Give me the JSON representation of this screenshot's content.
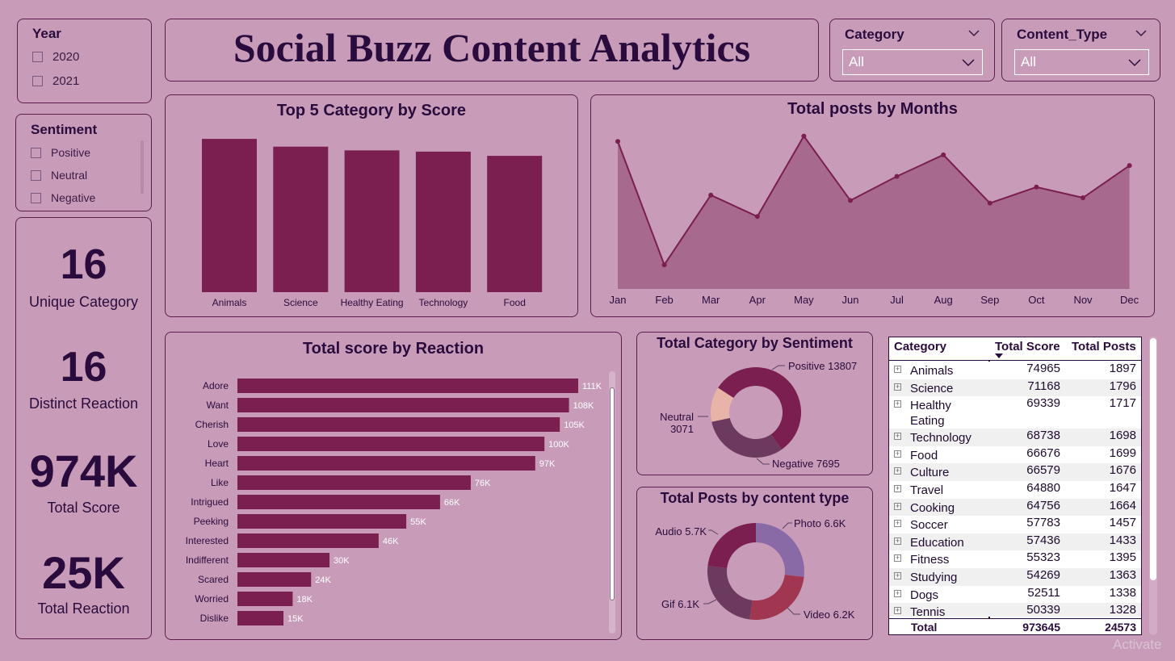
{
  "title": "Social Buzz Content Analytics",
  "year_slicer": {
    "title": "Year",
    "options": [
      "2020",
      "2021"
    ]
  },
  "sentiment_slicer": {
    "title": "Sentiment",
    "options": [
      "Positive",
      "Neutral",
      "Negative"
    ]
  },
  "category_slicer": {
    "title": "Category",
    "value": "All"
  },
  "content_type_slicer": {
    "title": "Content_Type",
    "value": "All"
  },
  "kpis": [
    {
      "value": "16",
      "label": "Unique Category"
    },
    {
      "value": "16",
      "label": "Distinct Reaction"
    },
    {
      "value": "974K",
      "label": "Total Score"
    },
    {
      "value": "25K",
      "label": "Total Reaction"
    }
  ],
  "colors": {
    "background": "#c89cb8",
    "bar": "#7a1f4f",
    "area_fill": "#a8698e",
    "line": "#7a1f4f",
    "title": "#2a0b3d"
  },
  "matrix": {
    "columns": [
      "Category",
      "Total Score",
      "Total Posts"
    ],
    "rows": [
      [
        "Animals",
        "74965",
        "1897"
      ],
      [
        "Science",
        "71168",
        "1796"
      ],
      [
        "Healthy Eating",
        "69339",
        "1717"
      ],
      [
        "Technology",
        "68738",
        "1698"
      ],
      [
        "Food",
        "66676",
        "1699"
      ],
      [
        "Culture",
        "66579",
        "1676"
      ],
      [
        "Travel",
        "64880",
        "1647"
      ],
      [
        "Cooking",
        "64756",
        "1664"
      ],
      [
        "Soccer",
        "57783",
        "1457"
      ],
      [
        "Education",
        "57436",
        "1433"
      ],
      [
        "Fitness",
        "55323",
        "1395"
      ],
      [
        "Studying",
        "54269",
        "1363"
      ],
      [
        "Dogs",
        "52511",
        "1338"
      ],
      [
        "Tennis",
        "50339",
        "1328"
      ]
    ],
    "total": [
      "Total",
      "973645",
      "24573"
    ]
  },
  "watermark": "Activate",
  "chart_data": [
    {
      "type": "bar",
      "title": "Top 5 Category by Score",
      "categories": [
        "Animals",
        "Science",
        "Healthy Eating",
        "Technology",
        "Food"
      ],
      "values": [
        74965,
        71168,
        69339,
        68738,
        66676
      ],
      "ylim": [
        0,
        75000
      ]
    },
    {
      "type": "area",
      "title": "Total posts by Months",
      "categories": [
        "Jan",
        "Feb",
        "Mar",
        "Apr",
        "May",
        "Jun",
        "Jul",
        "Aug",
        "Sep",
        "Oct",
        "Nov",
        "Dec"
      ],
      "values": [
        2140,
        1910,
        2040,
        2000,
        2150,
        2030,
        2075,
        2115,
        2025,
        2055,
        2035,
        2095
      ],
      "ylim": [
        1880,
        2160
      ]
    },
    {
      "type": "bar",
      "orientation": "horizontal",
      "title": "Total score by Reaction",
      "categories": [
        "Adore",
        "Want",
        "Cherish",
        "Love",
        "Heart",
        "Like",
        "Intrigued",
        "Peeking",
        "Interested",
        "Indifferent",
        "Scared",
        "Worried",
        "Dislike"
      ],
      "values": [
        111000,
        108000,
        105000,
        100000,
        97000,
        76000,
        66000,
        55000,
        46000,
        30000,
        24000,
        18000,
        15000
      ],
      "labels": [
        "111K",
        "108K",
        "105K",
        "100K",
        "97K",
        "76K",
        "66K",
        "55K",
        "46K",
        "30K",
        "24K",
        "18K",
        "15K"
      ]
    },
    {
      "type": "pie",
      "donut": true,
      "title": "Total Category by Sentiment",
      "series": [
        {
          "name": "Positive",
          "value": 13807,
          "label": "Positive 13807",
          "color": "#7a1f4f"
        },
        {
          "name": "Negative",
          "value": 7695,
          "label": "Negative 7695",
          "color": "#6b3a5e"
        },
        {
          "name": "Neutral",
          "value": 3071,
          "label": "Neutral 3071",
          "color": "#e8b4a8"
        }
      ]
    },
    {
      "type": "pie",
      "donut": true,
      "title": "Total Posts by content type",
      "series": [
        {
          "name": "Photo",
          "value": 6600,
          "label": "Photo 6.6K",
          "color": "#8a6aa6"
        },
        {
          "name": "Video",
          "value": 6200,
          "label": "Video 6.2K",
          "color": "#a0364f"
        },
        {
          "name": "Gif",
          "value": 6100,
          "label": "Gif 6.1K",
          "color": "#6b3a5e"
        },
        {
          "name": "Audio",
          "value": 5700,
          "label": "Audio 5.7K",
          "color": "#7a1f4f"
        }
      ]
    }
  ]
}
